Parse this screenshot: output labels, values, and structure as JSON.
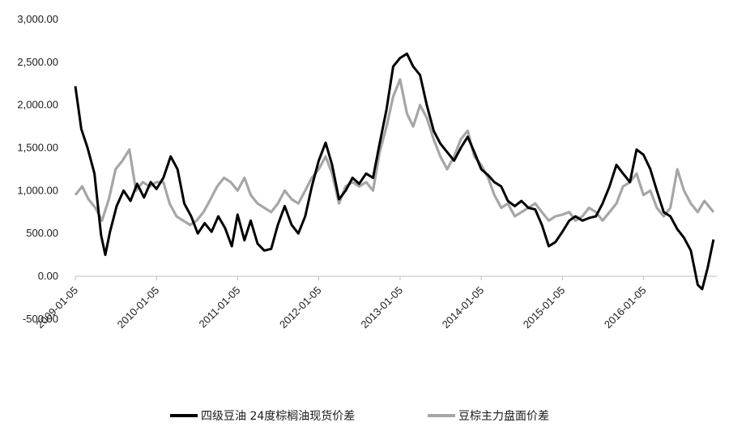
{
  "chart_data": {
    "type": "line",
    "title": "",
    "xlabel": "",
    "ylabel": "",
    "ylim": [
      -500,
      3000
    ],
    "yticks": [
      "-500.00",
      "0.00",
      "500.00",
      "1,000.00",
      "1,500.00",
      "2,000.00",
      "2,500.00",
      "3,000.00"
    ],
    "xticks": [
      "2009-01-05",
      "2010-01-05",
      "2011-01-05",
      "2012-01-05",
      "2013-01-05",
      "2014-01-05",
      "2015-01-05",
      "2016-01-05"
    ],
    "grid": false,
    "legend_position": "bottom",
    "series": [
      {
        "name": "四级豆油 24度棕榈油现货价差",
        "color": "#000000",
        "points": [
          [
            "2009-01-05",
            2220
          ],
          [
            "2009-02-01",
            1720
          ],
          [
            "2009-03-01",
            1500
          ],
          [
            "2009-04-01",
            1200
          ],
          [
            "2009-05-01",
            480
          ],
          [
            "2009-05-20",
            250
          ],
          [
            "2009-06-10",
            520
          ],
          [
            "2009-07-10",
            820
          ],
          [
            "2009-08-10",
            1000
          ],
          [
            "2009-09-10",
            880
          ],
          [
            "2009-10-10",
            1080
          ],
          [
            "2009-11-10",
            920
          ],
          [
            "2009-12-10",
            1100
          ],
          [
            "2010-01-05",
            1020
          ],
          [
            "2010-02-05",
            1150
          ],
          [
            "2010-03-10",
            1400
          ],
          [
            "2010-04-10",
            1250
          ],
          [
            "2010-05-10",
            850
          ],
          [
            "2010-06-10",
            700
          ],
          [
            "2010-07-10",
            500
          ],
          [
            "2010-08-10",
            620
          ],
          [
            "2010-09-10",
            520
          ],
          [
            "2010-10-10",
            700
          ],
          [
            "2010-11-10",
            560
          ],
          [
            "2010-12-10",
            350
          ],
          [
            "2011-01-05",
            720
          ],
          [
            "2011-02-05",
            420
          ],
          [
            "2011-03-05",
            650
          ],
          [
            "2011-04-05",
            380
          ],
          [
            "2011-05-05",
            300
          ],
          [
            "2011-06-05",
            320
          ],
          [
            "2011-07-05",
            600
          ],
          [
            "2011-08-05",
            820
          ],
          [
            "2011-09-05",
            600
          ],
          [
            "2011-10-05",
            500
          ],
          [
            "2011-11-05",
            700
          ],
          [
            "2011-12-05",
            1050
          ],
          [
            "2012-01-05",
            1350
          ],
          [
            "2012-02-05",
            1560
          ],
          [
            "2012-03-05",
            1300
          ],
          [
            "2012-04-05",
            900
          ],
          [
            "2012-05-05",
            1000
          ],
          [
            "2012-06-05",
            1150
          ],
          [
            "2012-07-05",
            1080
          ],
          [
            "2012-08-05",
            1200
          ],
          [
            "2012-09-05",
            1150
          ],
          [
            "2012-10-05",
            1550
          ],
          [
            "2012-11-05",
            1950
          ],
          [
            "2012-12-05",
            2450
          ],
          [
            "2013-01-05",
            2550
          ],
          [
            "2013-02-05",
            2600
          ],
          [
            "2013-03-05",
            2450
          ],
          [
            "2013-04-05",
            2350
          ],
          [
            "2013-05-05",
            2000
          ],
          [
            "2013-06-05",
            1700
          ],
          [
            "2013-07-05",
            1550
          ],
          [
            "2013-08-05",
            1450
          ],
          [
            "2013-09-05",
            1350
          ],
          [
            "2013-10-05",
            1500
          ],
          [
            "2013-11-05",
            1630
          ],
          [
            "2013-12-05",
            1450
          ],
          [
            "2014-01-05",
            1250
          ],
          [
            "2014-02-05",
            1180
          ],
          [
            "2014-03-05",
            1100
          ],
          [
            "2014-04-05",
            1050
          ],
          [
            "2014-05-05",
            880
          ],
          [
            "2014-06-05",
            820
          ],
          [
            "2014-07-05",
            880
          ],
          [
            "2014-08-05",
            800
          ],
          [
            "2014-09-05",
            780
          ],
          [
            "2014-10-05",
            600
          ],
          [
            "2014-11-05",
            350
          ],
          [
            "2014-12-05",
            400
          ],
          [
            "2015-01-05",
            520
          ],
          [
            "2015-02-05",
            650
          ],
          [
            "2015-03-05",
            700
          ],
          [
            "2015-04-05",
            650
          ],
          [
            "2015-05-05",
            680
          ],
          [
            "2015-06-05",
            700
          ],
          [
            "2015-07-05",
            850
          ],
          [
            "2015-08-05",
            1050
          ],
          [
            "2015-09-05",
            1300
          ],
          [
            "2015-10-05",
            1200
          ],
          [
            "2015-11-05",
            1100
          ],
          [
            "2015-12-05",
            1480
          ],
          [
            "2016-01-05",
            1420
          ],
          [
            "2016-02-05",
            1250
          ],
          [
            "2016-03-05",
            1000
          ],
          [
            "2016-04-05",
            750
          ],
          [
            "2016-05-05",
            700
          ],
          [
            "2016-06-05",
            550
          ],
          [
            "2016-07-05",
            450
          ],
          [
            "2016-08-05",
            300
          ],
          [
            "2016-09-05",
            -100
          ],
          [
            "2016-09-25",
            -150
          ],
          [
            "2016-10-20",
            100
          ],
          [
            "2016-11-15",
            430
          ]
        ]
      },
      {
        "name": "豆棕主力盘面价差",
        "color": "#a6a6a6",
        "points": [
          [
            "2009-01-05",
            950
          ],
          [
            "2009-02-05",
            1050
          ],
          [
            "2009-03-05",
            900
          ],
          [
            "2009-04-05",
            800
          ],
          [
            "2009-05-05",
            650
          ],
          [
            "2009-06-05",
            900
          ],
          [
            "2009-07-05",
            1250
          ],
          [
            "2009-08-05",
            1350
          ],
          [
            "2009-09-05",
            1480
          ],
          [
            "2009-10-05",
            1000
          ],
          [
            "2009-11-05",
            1100
          ],
          [
            "2009-12-05",
            1050
          ],
          [
            "2010-01-05",
            1100
          ],
          [
            "2010-02-05",
            1100
          ],
          [
            "2010-03-05",
            850
          ],
          [
            "2010-04-05",
            700
          ],
          [
            "2010-05-05",
            650
          ],
          [
            "2010-06-05",
            600
          ],
          [
            "2010-07-05",
            650
          ],
          [
            "2010-08-05",
            750
          ],
          [
            "2010-09-05",
            900
          ],
          [
            "2010-10-05",
            1050
          ],
          [
            "2010-11-05",
            1150
          ],
          [
            "2010-12-05",
            1100
          ],
          [
            "2011-01-05",
            1000
          ],
          [
            "2011-02-05",
            1150
          ],
          [
            "2011-03-05",
            950
          ],
          [
            "2011-04-05",
            850
          ],
          [
            "2011-05-05",
            800
          ],
          [
            "2011-06-05",
            750
          ],
          [
            "2011-07-05",
            850
          ],
          [
            "2011-08-05",
            1000
          ],
          [
            "2011-09-05",
            900
          ],
          [
            "2011-10-05",
            850
          ],
          [
            "2011-11-05",
            1000
          ],
          [
            "2011-12-05",
            1150
          ],
          [
            "2012-01-05",
            1250
          ],
          [
            "2012-02-05",
            1400
          ],
          [
            "2012-03-05",
            1200
          ],
          [
            "2012-04-05",
            850
          ],
          [
            "2012-05-05",
            1050
          ],
          [
            "2012-06-05",
            1100
          ],
          [
            "2012-07-05",
            1050
          ],
          [
            "2012-08-05",
            1100
          ],
          [
            "2012-09-05",
            1000
          ],
          [
            "2012-10-05",
            1450
          ],
          [
            "2012-11-05",
            1750
          ],
          [
            "2012-12-05",
            2100
          ],
          [
            "2013-01-05",
            2300
          ],
          [
            "2013-02-05",
            1900
          ],
          [
            "2013-03-05",
            1750
          ],
          [
            "2013-04-05",
            2000
          ],
          [
            "2013-05-05",
            1850
          ],
          [
            "2013-06-05",
            1600
          ],
          [
            "2013-07-05",
            1400
          ],
          [
            "2013-08-05",
            1250
          ],
          [
            "2013-09-05",
            1400
          ],
          [
            "2013-10-05",
            1600
          ],
          [
            "2013-11-05",
            1700
          ],
          [
            "2013-12-05",
            1400
          ],
          [
            "2014-01-05",
            1300
          ],
          [
            "2014-02-05",
            1150
          ],
          [
            "2014-03-05",
            950
          ],
          [
            "2014-04-05",
            800
          ],
          [
            "2014-05-05",
            850
          ],
          [
            "2014-06-05",
            700
          ],
          [
            "2014-07-05",
            750
          ],
          [
            "2014-08-05",
            800
          ],
          [
            "2014-09-05",
            850
          ],
          [
            "2014-10-05",
            750
          ],
          [
            "2014-11-05",
            650
          ],
          [
            "2014-12-05",
            700
          ],
          [
            "2015-01-05",
            720
          ],
          [
            "2015-02-05",
            750
          ],
          [
            "2015-03-05",
            650
          ],
          [
            "2015-04-05",
            700
          ],
          [
            "2015-05-05",
            800
          ],
          [
            "2015-06-05",
            750
          ],
          [
            "2015-07-05",
            650
          ],
          [
            "2015-08-05",
            750
          ],
          [
            "2015-09-05",
            850
          ],
          [
            "2015-10-05",
            1050
          ],
          [
            "2015-11-05",
            1100
          ],
          [
            "2015-12-05",
            1200
          ],
          [
            "2016-01-05",
            950
          ],
          [
            "2016-02-05",
            1000
          ],
          [
            "2016-03-05",
            800
          ],
          [
            "2016-04-05",
            700
          ],
          [
            "2016-05-05",
            800
          ],
          [
            "2016-06-05",
            1250
          ],
          [
            "2016-07-05",
            1000
          ],
          [
            "2016-08-05",
            850
          ],
          [
            "2016-09-05",
            750
          ],
          [
            "2016-10-05",
            880
          ],
          [
            "2016-11-15",
            750
          ]
        ]
      }
    ]
  }
}
